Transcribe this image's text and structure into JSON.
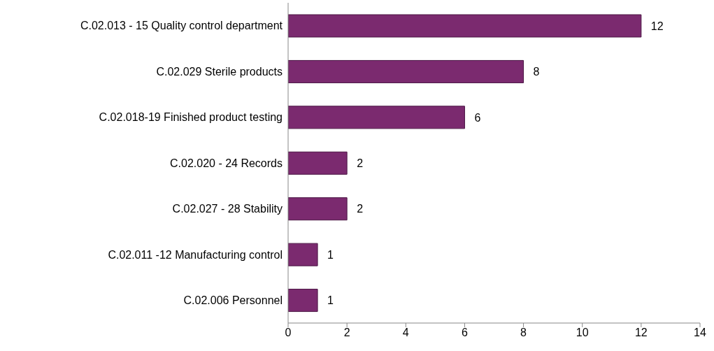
{
  "chart_data": {
    "type": "bar",
    "orientation": "horizontal",
    "categories": [
      "C.02.013 - 15 Quality control department",
      "C.02.029 Sterile products",
      "C.02.018-19 Finished product testing",
      "C.02.020 - 24 Records",
      "C.02.027 - 28 Stability",
      "C.02.011 -12 Manufacturing control",
      "C.02.006 Personnel"
    ],
    "values": [
      12,
      8,
      6,
      2,
      2,
      1,
      1
    ],
    "color": "#7b2a6f",
    "xlim": [
      0,
      14
    ],
    "xticks": [
      0,
      2,
      4,
      6,
      8,
      10,
      12,
      14
    ],
    "grid": false,
    "legend": false,
    "data_labels": true
  }
}
